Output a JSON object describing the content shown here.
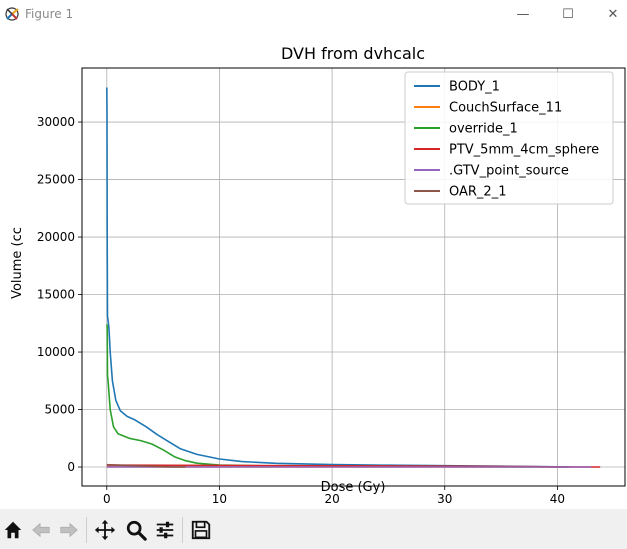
{
  "window": {
    "title": "Figure 1",
    "minimize_glyph": "—",
    "maximize_glyph": "☐",
    "close_glyph": "✕"
  },
  "toolbar": {
    "items": [
      {
        "icon": "home-icon"
      },
      {
        "icon": "back-arrow-icon"
      },
      {
        "icon": "forward-arrow-icon"
      },
      {
        "icon": "pan-icon"
      },
      {
        "icon": "zoom-icon"
      },
      {
        "icon": "configure-subplots-icon"
      },
      {
        "icon": "save-icon"
      }
    ]
  },
  "chart_data": {
    "type": "line",
    "title": "DVH from dvhcalc",
    "xlabel": "Dose (Gy)",
    "ylabel": "Volume (cc",
    "xlim": [
      -2.2,
      46.0
    ],
    "ylim": [
      -1650,
      34700
    ],
    "xticks": [
      0,
      10,
      20,
      30,
      40
    ],
    "yticks": [
      0,
      5000,
      10000,
      15000,
      20000,
      25000,
      30000
    ],
    "xtick_labels": [
      "0",
      "10",
      "20",
      "30",
      "40"
    ],
    "ytick_labels": [
      "0",
      "5000",
      "10000",
      "15000",
      "20000",
      "25000",
      "30000"
    ],
    "grid": true,
    "legend_position": "top-right",
    "series": [
      {
        "name": "BODY_1",
        "color": "#1f77b4",
        "points": [
          [
            0,
            33000
          ],
          [
            0.02,
            31000
          ],
          [
            0.04,
            20000
          ],
          [
            0.06,
            13100
          ],
          [
            0.1,
            12900
          ],
          [
            0.2,
            12000
          ],
          [
            0.3,
            10000
          ],
          [
            0.5,
            7500
          ],
          [
            0.8,
            5800
          ],
          [
            1.2,
            4900
          ],
          [
            1.8,
            4400
          ],
          [
            2.5,
            4100
          ],
          [
            3.5,
            3500
          ],
          [
            4.5,
            2800
          ],
          [
            5.5,
            2200
          ],
          [
            6.5,
            1600
          ],
          [
            8,
            1100
          ],
          [
            10,
            700
          ],
          [
            12,
            470
          ],
          [
            15,
            320
          ],
          [
            20,
            210
          ],
          [
            25,
            160
          ],
          [
            30,
            115
          ],
          [
            35,
            75
          ],
          [
            38,
            50
          ],
          [
            40,
            20
          ],
          [
            41,
            0
          ]
        ]
      },
      {
        "name": "CouchSurface_11",
        "color": "#ff7f0e",
        "points": [
          [
            0,
            20
          ],
          [
            10,
            8
          ],
          [
            20,
            4
          ],
          [
            30,
            2
          ],
          [
            40,
            0
          ]
        ]
      },
      {
        "name": "override_1",
        "color": "#2ca02c",
        "points": [
          [
            0,
            12400
          ],
          [
            0.04,
            12200
          ],
          [
            0.06,
            7900
          ],
          [
            0.1,
            7700
          ],
          [
            0.3,
            5000
          ],
          [
            0.6,
            3500
          ],
          [
            1,
            2900
          ],
          [
            2,
            2500
          ],
          [
            3,
            2300
          ],
          [
            4,
            2000
          ],
          [
            5,
            1500
          ],
          [
            6,
            900
          ],
          [
            7,
            550
          ],
          [
            8,
            330
          ],
          [
            10,
            170
          ],
          [
            15,
            90
          ],
          [
            20,
            55
          ],
          [
            30,
            25
          ],
          [
            40,
            5
          ],
          [
            41,
            0
          ]
        ]
      },
      {
        "name": "PTV_5mm_4cm_sphere",
        "color": "#d62728",
        "points": [
          [
            0,
            170
          ],
          [
            10,
            140
          ],
          [
            20,
            110
          ],
          [
            30,
            70
          ],
          [
            38,
            30
          ],
          [
            40.5,
            8
          ],
          [
            43.8,
            0
          ]
        ]
      },
      {
        "name": ".GTV_point_source",
        "color": "#9467bd",
        "points": [
          [
            0,
            10
          ],
          [
            20,
            5
          ],
          [
            40,
            1
          ],
          [
            43,
            0
          ]
        ]
      },
      {
        "name": "OAR_2_1",
        "color": "#8c564b",
        "points": [
          [
            0,
            200
          ],
          [
            2,
            120
          ],
          [
            4,
            60
          ],
          [
            5,
            30
          ],
          [
            6,
            5
          ],
          [
            7,
            0
          ]
        ]
      }
    ]
  }
}
